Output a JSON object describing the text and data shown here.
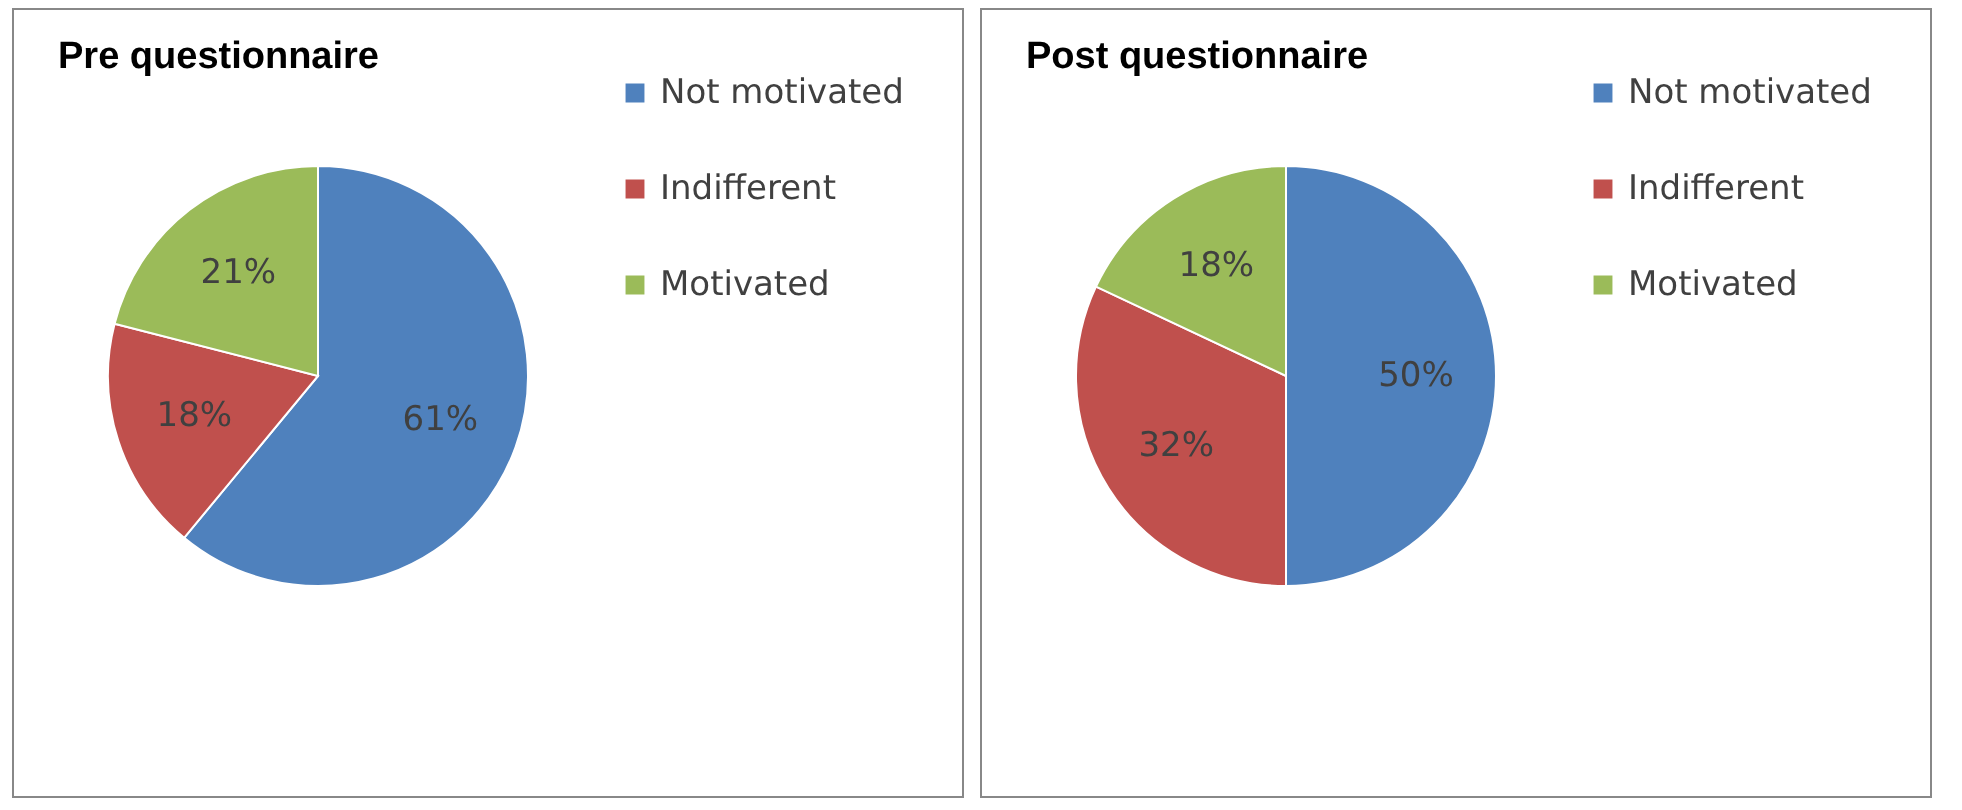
{
  "chart_data": [
    {
      "type": "pie",
      "title": "Pre questionnaire",
      "categories": [
        "Not motivated",
        "Indifferent",
        "Motivated"
      ],
      "values": [
        61,
        18,
        21
      ],
      "colors": [
        "#4f81bd",
        "#c0504d",
        "#9bbb59"
      ],
      "value_labels": [
        "61%",
        "18%",
        "21%"
      ],
      "legend": "right"
    },
    {
      "type": "pie",
      "title": "Post questionnaire",
      "categories": [
        "Not motivated",
        "Indifferent",
        "Motivated"
      ],
      "values": [
        50,
        32,
        18
      ],
      "colors": [
        "#4f81bd",
        "#c0504d",
        "#9bbb59"
      ],
      "value_labels": [
        "50%",
        "32%",
        "18%"
      ],
      "legend": "right"
    }
  ]
}
